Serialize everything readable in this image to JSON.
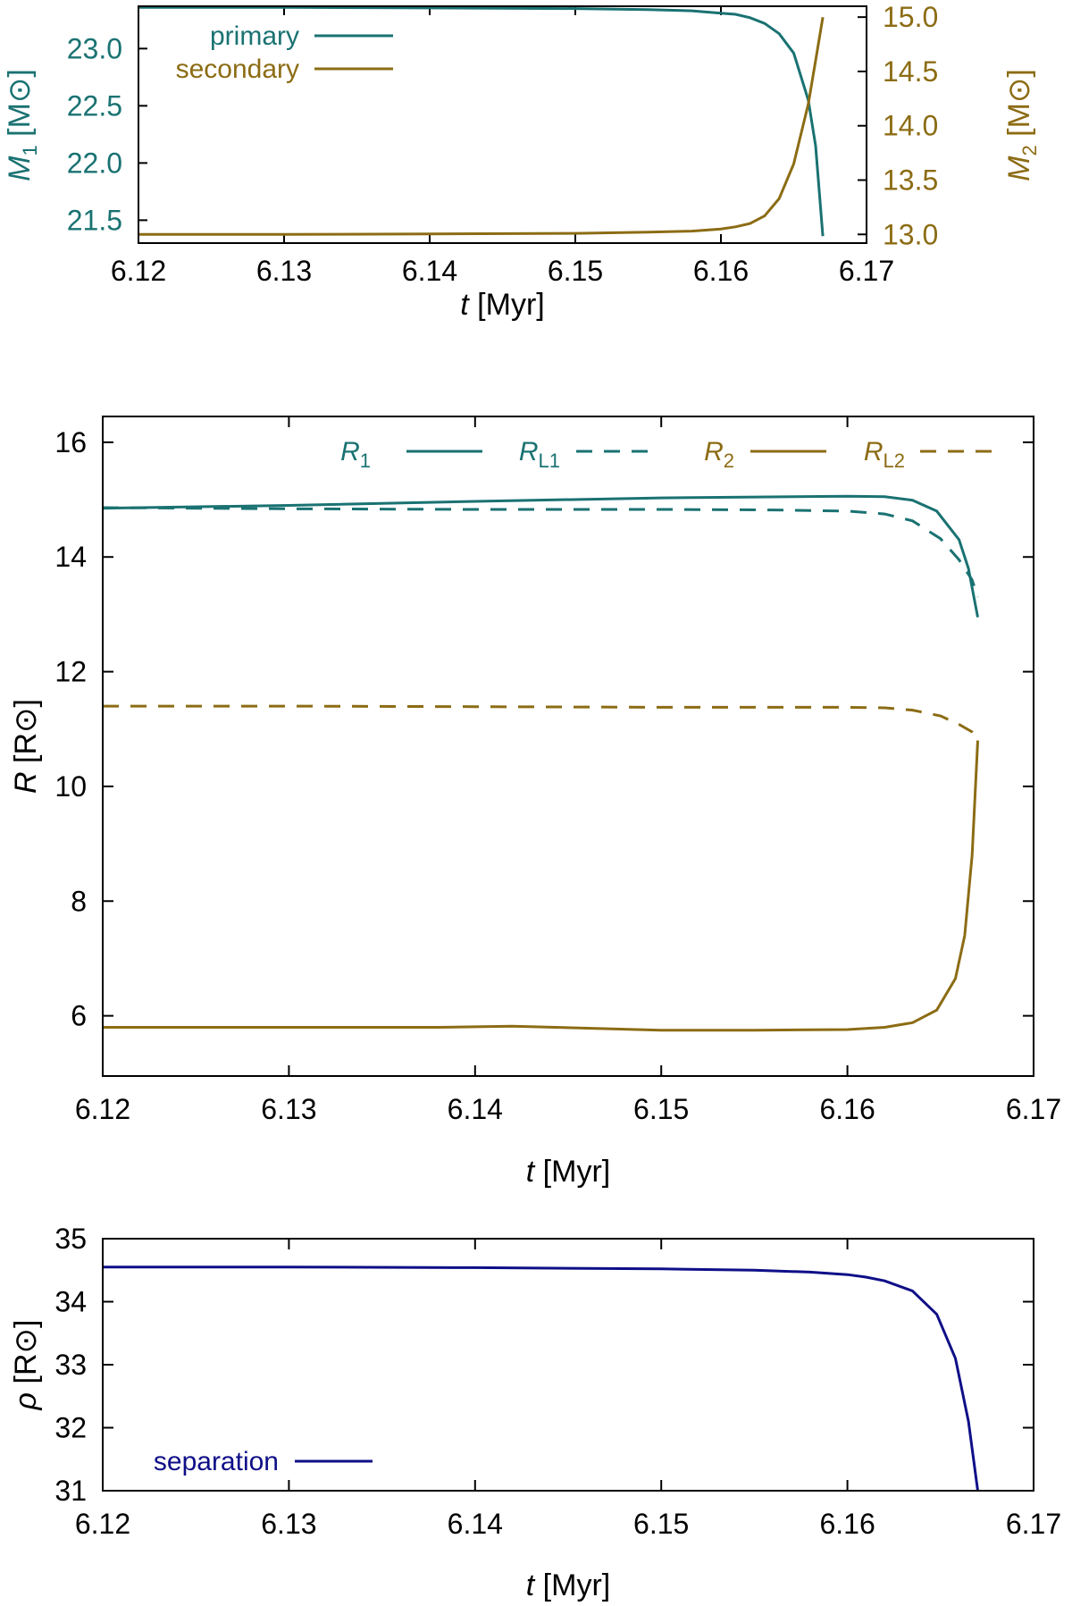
{
  "colors": {
    "teal": "#1a7272",
    "gold": "#8c6c14",
    "navy": "#0f0f88",
    "axis": "#000000"
  },
  "chart_data": [
    {
      "type": "line",
      "xlabel": "t [Myr]",
      "xlabel_var": "t",
      "xlabel_unit": "[Myr]",
      "xlim": [
        6.12,
        6.17
      ],
      "xticks": [
        "6.12",
        "6.13",
        "6.14",
        "6.15",
        "6.16",
        "6.17"
      ],
      "ylabel_left": "M1 [M⊙]",
      "ylabel_left_var": "M",
      "ylabel_left_sub": "1",
      "ylabel_left_unit": "[M⊙]",
      "ylim_left": [
        21.3,
        23.37
      ],
      "yticks_left": [
        "21.5",
        "22.0",
        "22.5",
        "23.0"
      ],
      "ylabel_right": "M2 [M⊙]",
      "ylabel_right_var": "M",
      "ylabel_right_sub": "2",
      "ylabel_right_unit": "[M⊙]",
      "ylim_right": [
        12.92,
        15.1
      ],
      "yticks_right": [
        "13.0",
        "13.5",
        "14.0",
        "14.5",
        "15.0"
      ],
      "legend": "top-right",
      "series": [
        {
          "name": "primary",
          "axis": "left",
          "color": "teal",
          "x": [
            6.12,
            6.13,
            6.14,
            6.15,
            6.155,
            6.158,
            6.16,
            6.161,
            6.162,
            6.163,
            6.164,
            6.165,
            6.166,
            6.1665,
            6.167
          ],
          "y": [
            23.36,
            23.36,
            23.355,
            23.35,
            23.34,
            23.33,
            23.31,
            23.3,
            23.27,
            23.22,
            23.13,
            22.96,
            22.55,
            22.15,
            21.36
          ]
        },
        {
          "name": "secondary",
          "axis": "right",
          "color": "gold",
          "x": [
            6.12,
            6.13,
            6.14,
            6.15,
            6.155,
            6.158,
            6.16,
            6.161,
            6.162,
            6.163,
            6.164,
            6.165,
            6.166,
            6.1665,
            6.167
          ],
          "y": [
            13.0,
            13.0,
            13.005,
            13.01,
            13.02,
            13.03,
            13.05,
            13.07,
            13.1,
            13.17,
            13.33,
            13.65,
            14.2,
            14.6,
            15.0
          ]
        }
      ]
    },
    {
      "type": "line",
      "xlabel": "t [Myr]",
      "xlabel_var": "t",
      "xlabel_unit": "[Myr]",
      "xlim": [
        6.12,
        6.17
      ],
      "xticks": [
        "6.12",
        "6.13",
        "6.14",
        "6.15",
        "6.16",
        "6.17"
      ],
      "ylabel": "R [R⊙]",
      "ylabel_var": "R",
      "ylabel_unit": "[R⊙]",
      "ylim": [
        4.95,
        16.45
      ],
      "yticks": [
        "6",
        "8",
        "10",
        "12",
        "14",
        "16"
      ],
      "legend": "top",
      "series": [
        {
          "name": "R1",
          "label_var": "R",
          "label_sub": "1",
          "color": "teal",
          "dash": false,
          "x": [
            6.12,
            6.13,
            6.14,
            6.15,
            6.16,
            6.162,
            6.1635,
            6.1648,
            6.166,
            6.1665,
            6.167
          ],
          "y": [
            14.85,
            14.9,
            14.97,
            15.03,
            15.06,
            15.05,
            14.99,
            14.8,
            14.3,
            13.8,
            12.95
          ]
        },
        {
          "name": "RL1",
          "label_var": "R",
          "label_sub": "L1",
          "color": "teal",
          "dash": true,
          "x": [
            6.12,
            6.13,
            6.14,
            6.15,
            6.156,
            6.16,
            6.162,
            6.1635,
            6.165,
            6.166,
            6.1667,
            6.167
          ],
          "y": [
            14.86,
            14.84,
            14.83,
            14.83,
            14.82,
            14.8,
            14.75,
            14.63,
            14.32,
            13.95,
            13.6,
            13.3
          ]
        },
        {
          "name": "R2",
          "label_var": "R",
          "label_sub": "2",
          "color": "gold",
          "dash": false,
          "x": [
            6.12,
            6.13,
            6.138,
            6.142,
            6.15,
            6.155,
            6.16,
            6.162,
            6.1635,
            6.1648,
            6.1658,
            6.1663,
            6.1667,
            6.167
          ],
          "y": [
            5.8,
            5.8,
            5.8,
            5.82,
            5.75,
            5.75,
            5.76,
            5.8,
            5.88,
            6.1,
            6.65,
            7.4,
            8.8,
            10.8
          ]
        },
        {
          "name": "RL2",
          "label_var": "R",
          "label_sub": "L2",
          "color": "gold",
          "dash": true,
          "x": [
            6.12,
            6.13,
            6.14,
            6.15,
            6.156,
            6.16,
            6.162,
            6.1635,
            6.165,
            6.166,
            6.1667,
            6.167
          ],
          "y": [
            11.4,
            11.4,
            11.39,
            11.38,
            11.38,
            11.38,
            11.37,
            11.33,
            11.23,
            11.08,
            10.95,
            10.85
          ]
        }
      ]
    },
    {
      "type": "line",
      "xlabel": "t [Myr]",
      "xlabel_var": "t",
      "xlabel_unit": "[Myr]",
      "xlim": [
        6.12,
        6.17
      ],
      "xticks": [
        "6.12",
        "6.13",
        "6.14",
        "6.15",
        "6.16",
        "6.17"
      ],
      "ylabel": "ρ [R⊙]",
      "ylabel_var": "ρ",
      "ylabel_unit": "[R⊙]",
      "ylim": [
        31.0,
        35.0
      ],
      "yticks": [
        "31",
        "32",
        "33",
        "34",
        "35"
      ],
      "legend": "bottom-left",
      "series": [
        {
          "name": "separation",
          "color": "navy",
          "x": [
            6.12,
            6.13,
            6.14,
            6.15,
            6.155,
            6.158,
            6.16,
            6.161,
            6.162,
            6.1635,
            6.1648,
            6.1658,
            6.1665,
            6.167
          ],
          "y": [
            34.55,
            34.55,
            34.54,
            34.52,
            34.5,
            34.47,
            34.43,
            34.39,
            34.33,
            34.17,
            33.8,
            33.1,
            32.1,
            31.0
          ]
        }
      ]
    }
  ]
}
